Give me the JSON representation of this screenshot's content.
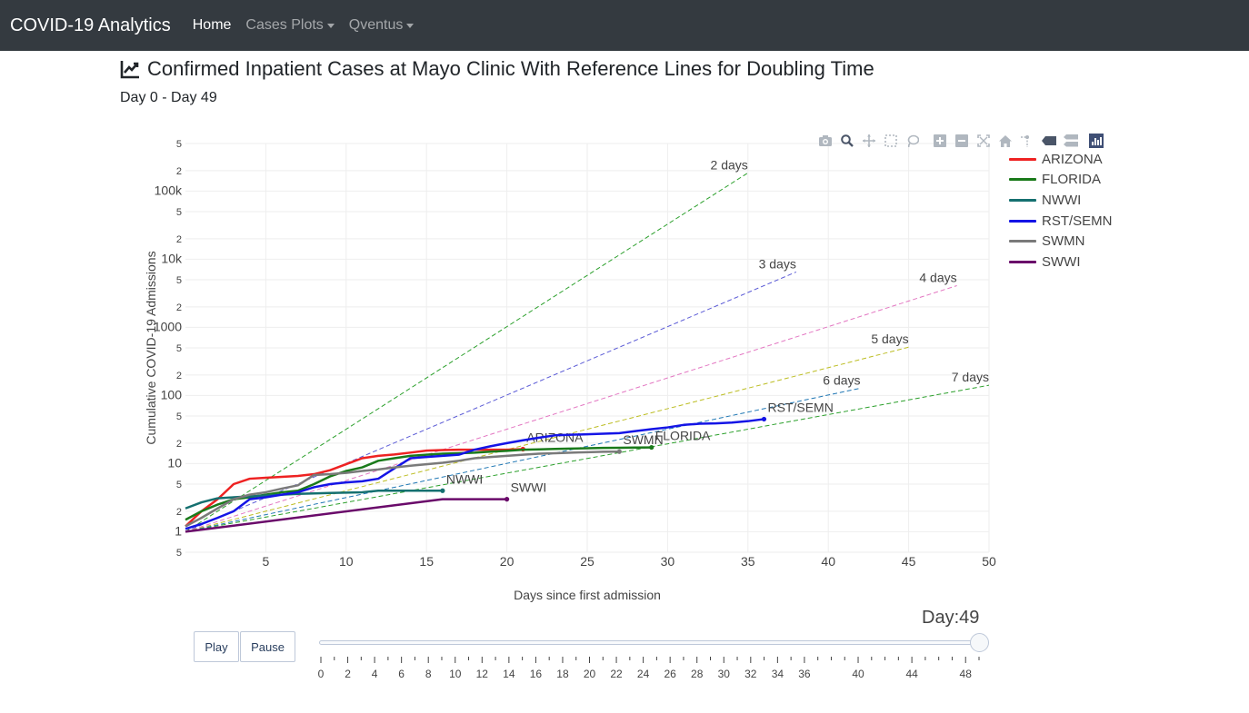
{
  "navbar": {
    "brand": "COVID-19 Analytics",
    "items": [
      {
        "label": "Home",
        "active": true,
        "dropdown": false
      },
      {
        "label": "Cases Plots",
        "active": false,
        "dropdown": true
      },
      {
        "label": "Qventus",
        "active": false,
        "dropdown": true
      }
    ]
  },
  "page": {
    "title": "Confirmed Inpatient Cases at Mayo Clinic With Reference Lines for Doubling Time",
    "title_icon": "chart-line-icon",
    "subtitle": "Day 0 - Day 49"
  },
  "modebar": {
    "icons": [
      "camera-icon",
      "zoom-icon",
      "pan-icon",
      "box-select-icon",
      "lasso-icon",
      "zoom-in-icon",
      "zoom-out-icon",
      "autoscale-icon",
      "reset-axes-icon",
      "spike-lines-icon",
      "hover-closest-icon",
      "hover-compare-icon",
      "plotly-logo-icon"
    ]
  },
  "colors": {
    "navbar": "#343a40",
    "ARIZONA": "#ee2222",
    "FLORIDA": "#1a7a1a",
    "NWWI": "#157070",
    "RST/SEMN": "#1414e6",
    "SWMN": "#7a7a7a",
    "SWWI": "#6a0a6a"
  },
  "chart_data": {
    "type": "line",
    "title": "",
    "xlabel": "Days since first admission",
    "ylabel": "Cumulative COVID-19 Admissions",
    "x_range": [
      0,
      50
    ],
    "y_scale": "log",
    "y_range": [
      0.5,
      500000
    ],
    "x_ticks": [
      5,
      10,
      15,
      20,
      25,
      30,
      35,
      40,
      45,
      50
    ],
    "y_tick_labels": [
      {
        "v": 0.5,
        "t": "5"
      },
      {
        "v": 1,
        "t": "1"
      },
      {
        "v": 2,
        "t": "2"
      },
      {
        "v": 5,
        "t": "5"
      },
      {
        "v": 10,
        "t": "10"
      },
      {
        "v": 20,
        "t": "2"
      },
      {
        "v": 50,
        "t": "5"
      },
      {
        "v": 100,
        "t": "100"
      },
      {
        "v": 200,
        "t": "2"
      },
      {
        "v": 500,
        "t": "5"
      },
      {
        "v": 1000,
        "t": "1000"
      },
      {
        "v": 2000,
        "t": "2"
      },
      {
        "v": 5000,
        "t": "5"
      },
      {
        "v": 10000,
        "t": "10k"
      },
      {
        "v": 20000,
        "t": "2"
      },
      {
        "v": 50000,
        "t": "5"
      },
      {
        "v": 100000,
        "t": "100k"
      },
      {
        "v": 200000,
        "t": "2"
      },
      {
        "v": 500000,
        "t": "5"
      }
    ],
    "grid": true,
    "legend_position": "top-right",
    "series": [
      {
        "name": "ARIZONA",
        "label": "ARIZONA",
        "x": [
          0,
          1,
          2,
          3,
          4,
          5,
          6,
          7,
          8,
          9,
          10,
          11,
          12,
          13,
          14,
          15,
          16,
          17,
          18,
          19,
          20,
          21
        ],
        "y": [
          1.2,
          2,
          3,
          5,
          6,
          6.2,
          6.4,
          6.6,
          7,
          8,
          9.8,
          12,
          13,
          13.6,
          14.5,
          15.5,
          15.8,
          16,
          16,
          16,
          16,
          16.3
        ]
      },
      {
        "name": "FLORIDA",
        "label": "FLORIDA",
        "x": [
          0,
          1,
          2,
          3,
          4,
          5,
          6,
          7,
          8,
          9,
          10,
          11,
          12,
          13,
          14,
          15,
          16,
          17,
          18,
          19,
          20,
          21,
          22,
          23,
          24,
          25,
          26,
          27,
          28,
          29
        ],
        "y": [
          1.5,
          2,
          2.5,
          3,
          3.2,
          3.5,
          3.8,
          4,
          5,
          6.5,
          7.8,
          8.8,
          11,
          12,
          13,
          13.5,
          14,
          14.2,
          14.5,
          15,
          15.4,
          16,
          16.2,
          16.4,
          16.6,
          16.8,
          17,
          17.1,
          17.2,
          17.3
        ]
      },
      {
        "name": "NWWI",
        "label": "NWWI",
        "x": [
          0,
          1,
          2,
          3,
          4,
          5,
          6,
          7,
          8,
          9,
          10,
          11,
          12,
          13,
          14,
          15,
          16
        ],
        "y": [
          2.2,
          2.7,
          3.1,
          3.2,
          3.3,
          3.4,
          3.5,
          3.6,
          3.65,
          3.7,
          3.75,
          3.8,
          4,
          4,
          4,
          4,
          4
        ]
      },
      {
        "name": "RST/SEMN",
        "label": "RST/SEMN",
        "x": [
          0,
          1,
          2,
          3,
          4,
          5,
          6,
          7,
          8,
          9,
          10,
          11,
          12,
          13,
          14,
          15,
          16,
          17,
          18,
          19,
          20,
          21,
          22,
          23,
          24,
          25,
          26,
          27,
          28,
          29,
          30,
          31,
          32,
          33,
          34,
          35,
          36
        ],
        "y": [
          1.1,
          1.3,
          1.6,
          2,
          3,
          3.2,
          3.5,
          3.8,
          4.5,
          5,
          5.3,
          5.5,
          6,
          8.5,
          12,
          12.5,
          13,
          13.5,
          16,
          18,
          20,
          22,
          24,
          26,
          26.5,
          27,
          27.5,
          28,
          30,
          32,
          34,
          37,
          38.5,
          39,
          40,
          42,
          45
        ]
      },
      {
        "name": "SWMN",
        "label": "SWMN",
        "x": [
          0,
          1,
          2,
          3,
          4,
          5,
          6,
          7,
          8,
          9,
          10,
          11,
          12,
          13,
          14,
          15,
          16,
          17,
          18,
          19,
          20,
          21,
          22,
          23,
          24,
          25,
          26,
          27
        ],
        "y": [
          1.2,
          1.6,
          2.2,
          3,
          3.5,
          3.8,
          4.3,
          4.8,
          6.8,
          7,
          7.3,
          7.8,
          8.2,
          8.8,
          9.3,
          9.8,
          10.3,
          11,
          12,
          12.5,
          13,
          13.5,
          14,
          14.2,
          14.5,
          14.7,
          14.9,
          15
        ]
      },
      {
        "name": "SWWI",
        "label": "SWWI",
        "x": [
          0,
          16,
          20
        ],
        "y": [
          1,
          3,
          3
        ]
      }
    ],
    "reference_lines": [
      {
        "label": "2 days",
        "doubling_days": 2,
        "x_end": 35,
        "color": "#2ca02c"
      },
      {
        "label": "3 days",
        "doubling_days": 3,
        "x_end": 38,
        "color": "#5a5ad6"
      },
      {
        "label": "4 days",
        "doubling_days": 4,
        "x_end": 48,
        "color": "#e377c2"
      },
      {
        "label": "5 days",
        "doubling_days": 5,
        "x_end": 45,
        "color": "#bcbd22"
      },
      {
        "label": "6 days",
        "doubling_days": 6,
        "x_end": 42,
        "color": "#1f77b4"
      },
      {
        "label": "7 days",
        "doubling_days": 7,
        "x_end": 50,
        "color": "#2ca02c"
      }
    ]
  },
  "controls": {
    "play_label": "Play",
    "pause_label": "Pause",
    "day_readout": "Day:49",
    "slider_value": 49,
    "slider_max": 49,
    "slider_tick_labels": [
      "0",
      "2",
      "4",
      "6",
      "8",
      "10",
      "12",
      "14",
      "16",
      "18",
      "20",
      "22",
      "24",
      "26",
      "28",
      "30",
      "32",
      "34",
      "36",
      "40",
      "44",
      "48"
    ]
  }
}
